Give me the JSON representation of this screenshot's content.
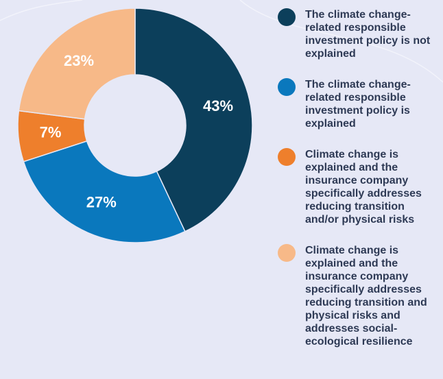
{
  "chart_data": {
    "type": "pie",
    "categories": [
      "The climate change-related responsible investment policy is not explained",
      "The climate change-related responsible investment policy is explained",
      "Climate change is explained and the insurance company specifically addresses reducing transition and/or physical risks",
      "Climate change is explained and the insurance company specifically addresses reducing transition and physical risks and addresses social-ecological resilience"
    ],
    "values": [
      43,
      27,
      7,
      23
    ],
    "value_labels": [
      "43%",
      "27%",
      "7%",
      "23%"
    ],
    "colors": [
      "#0c3f5b",
      "#0a78bd",
      "#ee7f2c",
      "#f7b988"
    ],
    "donut": true
  }
}
